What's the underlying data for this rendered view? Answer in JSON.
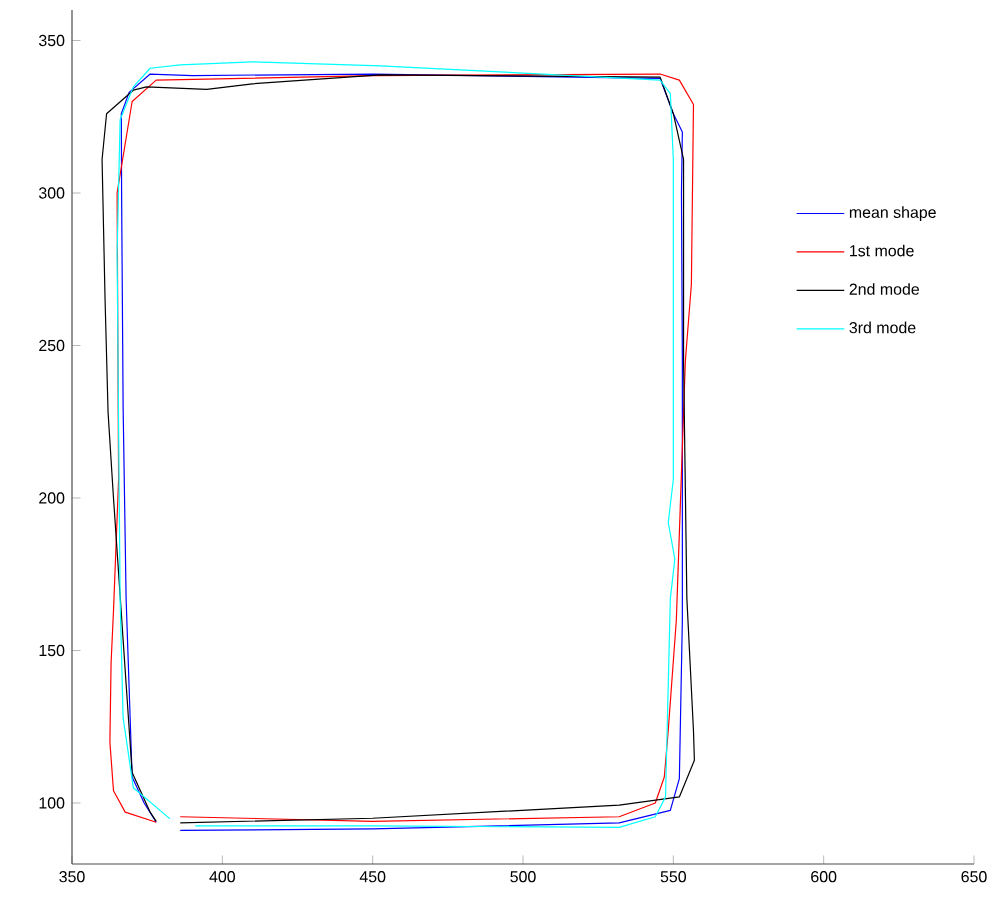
{
  "chart_data": {
    "type": "line",
    "xlim": [
      350,
      650
    ],
    "ylim": [
      80,
      360
    ],
    "xticks": [
      350,
      400,
      450,
      500,
      550,
      600,
      650
    ],
    "yticks": [
      100,
      150,
      200,
      250,
      300,
      350
    ],
    "legend": "right",
    "series": [
      {
        "name": "mean shape",
        "color": "#0000ff",
        "x": [
          386,
          450,
          532,
          549,
          552,
          553,
          553,
          552.7,
          553,
          550,
          545.6,
          450,
          390,
          376,
          369,
          366.4,
          366.5,
          367,
          368,
          370,
          374,
          378
        ],
        "values": [
          91,
          91.5,
          93.5,
          97.6,
          108,
          160,
          245.6,
          300,
          320,
          326,
          337.6,
          339,
          338.5,
          339,
          333,
          326,
          300,
          230,
          167,
          108.5,
          100,
          93.7
        ]
      },
      {
        "name": "1st mode",
        "color": "#ff0000",
        "x": [
          386,
          450,
          532,
          544,
          547,
          548.3,
          551,
          554,
          556,
          556.7,
          552,
          545.6,
          450,
          378,
          370,
          365,
          365.5,
          363.8,
          363,
          362.6,
          363.8,
          367.7,
          378
        ],
        "values": [
          95.5,
          94,
          95.5,
          100,
          108.5,
          123.7,
          160,
          245,
          270,
          329,
          337,
          339,
          338.5,
          337,
          330,
          300,
          206,
          163,
          146,
          120,
          104,
          97,
          93.7
        ]
      },
      {
        "name": "2nd mode",
        "color": "#000000",
        "x": [
          386,
          450,
          532,
          552,
          557,
          556.7,
          554.5,
          553.4,
          553.4,
          550,
          545.6,
          452.5,
          410,
          394.8,
          374.8,
          370.4,
          361.5,
          360,
          361,
          362,
          363.8,
          370,
          376,
          378
        ],
        "values": [
          93.5,
          95,
          99.3,
          102,
          114,
          123.7,
          167,
          245,
          311,
          326,
          338,
          338.7,
          335.8,
          334,
          334.8,
          333.7,
          326,
          311,
          265,
          228,
          200,
          110,
          97,
          94
        ]
      },
      {
        "name": "3rd mode",
        "color": "#00ffff",
        "x": [
          391,
          450,
          532,
          544,
          547.4,
          549,
          550.5,
          548.3,
          550,
          550,
          549,
          545.6,
          452.5,
          410,
          386,
          376,
          370.4,
          366,
          365,
          366,
          367,
          370.4,
          382.6
        ],
        "values": [
          92.5,
          92.5,
          92,
          95.5,
          102,
          167,
          180,
          192,
          206,
          311,
          332.6,
          337,
          341.7,
          343,
          342,
          340.9,
          334.8,
          324,
          280,
          167,
          128,
          105,
          94.8
        ]
      }
    ]
  }
}
